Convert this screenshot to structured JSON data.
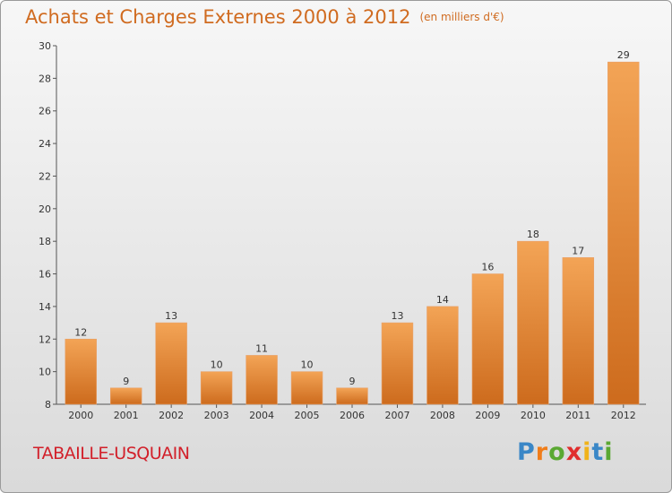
{
  "header": {
    "title": "Achats et Charges Externes 2000 à 2012",
    "unit": "(en milliers d'€)"
  },
  "footer": {
    "location": "TABAILLE-USQUAIN",
    "logo": {
      "letters": [
        "P",
        "r",
        "o",
        "x",
        "i",
        "t",
        "i"
      ],
      "colors": [
        "#3a87c7",
        "#f07d1a",
        "#5aa832",
        "#e02d2d",
        "#f0b21a",
        "#3a87c7",
        "#5aa832"
      ]
    }
  },
  "chart_data": {
    "type": "bar",
    "title": "Achats et Charges Externes 2000 à 2012",
    "subtitle": "(en milliers d'€)",
    "categories": [
      "2000",
      "2001",
      "2002",
      "2003",
      "2004",
      "2005",
      "2006",
      "2007",
      "2008",
      "2009",
      "2010",
      "2011",
      "2012"
    ],
    "values": [
      12,
      9,
      13,
      10,
      11,
      10,
      9,
      13,
      14,
      16,
      18,
      17,
      29
    ],
    "ylim": [
      8,
      30
    ],
    "yticks": [
      8,
      10,
      12,
      14,
      16,
      18,
      20,
      22,
      24,
      26,
      28,
      30
    ],
    "grid": false,
    "bar_color": "#f09a45",
    "bar_color_dark": "#cc6a1c"
  }
}
